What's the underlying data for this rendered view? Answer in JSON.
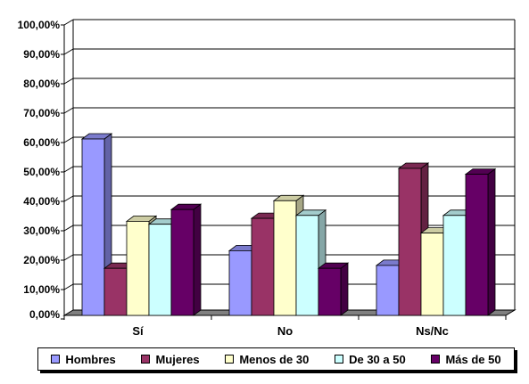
{
  "chart_data": {
    "type": "bar",
    "categories": [
      "Sí",
      "No",
      "Ns/Nc"
    ],
    "series": [
      {
        "name": "Hombres",
        "values": [
          60,
          22,
          17
        ],
        "color": "#9999ff"
      },
      {
        "name": "Mujeres",
        "values": [
          16,
          33,
          50
        ],
        "color": "#993366"
      },
      {
        "name": "Menos de 30",
        "values": [
          32,
          39,
          28
        ],
        "color": "#ffffcc"
      },
      {
        "name": "De 30 a 50",
        "values": [
          31,
          34,
          34
        ],
        "color": "#ccffff"
      },
      {
        "name": "Más de 50",
        "values": [
          36,
          16,
          48
        ],
        "color": "#660066"
      }
    ],
    "ylim": [
      0,
      100
    ],
    "yticks": [
      "0,00%",
      "10,00%",
      "20,00%",
      "30,00%",
      "40,00%",
      "50,00%",
      "60,00%",
      "70,00%",
      "80,00%",
      "90,00%",
      "100,00%"
    ],
    "grid": true,
    "legend_position": "bottom"
  }
}
